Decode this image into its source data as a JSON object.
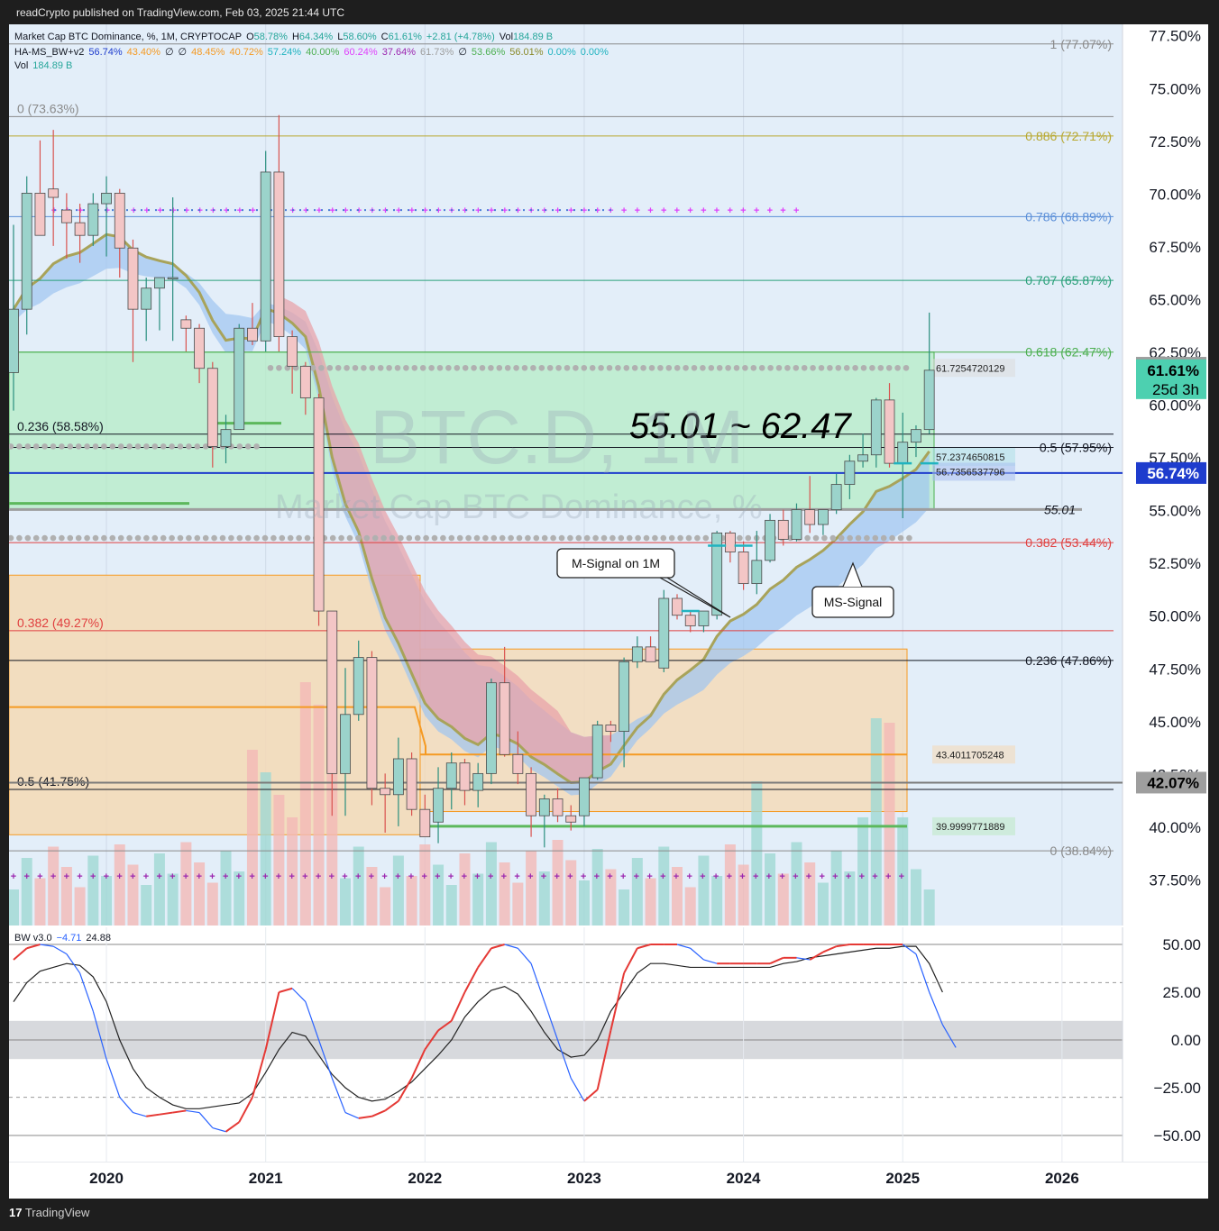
{
  "header": {
    "published": "readCrypto published on TradingView.com, Feb 03, 2025 21:44 UTC"
  },
  "legend": {
    "symbol_title": "Market Cap BTC Dominance, %, 1M, CRYPTOCAP",
    "ohlc": [
      {
        "t": "O",
        "v": "58.78%"
      },
      {
        "t": "H",
        "v": "64.34%"
      },
      {
        "t": "L",
        "v": "58.60%"
      },
      {
        "t": "C",
        "v": "61.61%"
      },
      {
        "t": "",
        "v": "+2.81 (+4.78%)"
      },
      {
        "t": "Vol",
        "v": "184.89 B"
      }
    ],
    "indicator_name": "HA-MS_BW+v2",
    "indicator_values": [
      {
        "v": "56.74%",
        "c": "#1e3ccd"
      },
      {
        "v": "43.40%",
        "c": "#f59a23"
      },
      {
        "v": "∅",
        "c": "#131722"
      },
      {
        "v": "∅",
        "c": "#131722"
      },
      {
        "v": "48.45%",
        "c": "#f59a23"
      },
      {
        "v": "40.72%",
        "c": "#f59a23"
      },
      {
        "v": "57.24%",
        "c": "#20b3c0"
      },
      {
        "v": "40.00%",
        "c": "#4caf50"
      },
      {
        "v": "60.24%",
        "c": "#e040fb"
      },
      {
        "v": "37.64%",
        "c": "#9c27b0"
      },
      {
        "v": "61.73%",
        "c": "#9e9e9e"
      },
      {
        "v": "∅",
        "c": "#131722"
      },
      {
        "v": "53.66%",
        "c": "#4caf50"
      },
      {
        "v": "56.01%",
        "c": "#8a8a2a"
      },
      {
        "v": "0.00%",
        "c": "#20b3c0"
      },
      {
        "v": "0.00%",
        "c": "#20b3c0"
      }
    ],
    "vol_label": "Vol",
    "vol_value": "184.89 B",
    "bw_name": "BW v3.0",
    "bw_values": [
      "−4.71",
      "24.88"
    ]
  },
  "watermark": {
    "big": "BTC.D, 1M",
    "small": "Market Cap BTC Dominance, %"
  },
  "annotations": {
    "range": "55.01 ~ 62.47",
    "m_signal": "M-Signal on 1M",
    "ms_signal": "MS-Signal"
  },
  "chart_data": {
    "type": "candlestick",
    "interval": "1M",
    "x_axis": {
      "ticks": [
        "2020",
        "2021",
        "2022",
        "2023",
        "2024",
        "2025",
        "2026"
      ]
    },
    "y_axis": {
      "unit": "%",
      "range": [
        35.3,
        78.0
      ],
      "ticks": [
        "77.50%",
        "75.00%",
        "72.50%",
        "70.00%",
        "67.50%",
        "65.00%",
        "62.50%",
        "60.00%",
        "57.50%",
        "55.00%",
        "52.50%",
        "50.00%",
        "47.50%",
        "45.00%",
        "42.50%",
        "40.00%",
        "37.50%"
      ]
    },
    "start": "2019-06",
    "candles": [
      {
        "o": 61.5,
        "h": 68.5,
        "l": 59.7,
        "c": 64.5
      },
      {
        "o": 64.5,
        "h": 70.8,
        "l": 63.3,
        "c": 70.0
      },
      {
        "o": 70.0,
        "h": 72.5,
        "l": 68.0,
        "c": 68.0
      },
      {
        "o": 70.2,
        "h": 73.0,
        "l": 67.5,
        "c": 69.8
      },
      {
        "o": 69.2,
        "h": 70.0,
        "l": 66.9,
        "c": 68.6
      },
      {
        "o": 68.6,
        "h": 69.5,
        "l": 66.7,
        "c": 68.0
      },
      {
        "o": 68.0,
        "h": 70.0,
        "l": 67.5,
        "c": 69.5
      },
      {
        "o": 69.5,
        "h": 70.8,
        "l": 67.0,
        "c": 70.0
      },
      {
        "o": 70.0,
        "h": 70.2,
        "l": 66.0,
        "c": 67.4
      },
      {
        "o": 67.4,
        "h": 67.8,
        "l": 62.0,
        "c": 64.5
      },
      {
        "o": 64.5,
        "h": 66.0,
        "l": 63.0,
        "c": 65.5
      },
      {
        "o": 65.5,
        "h": 66.0,
        "l": 63.5,
        "c": 66.0
      },
      {
        "o": 66.0,
        "h": 69.8,
        "l": 63.0,
        "c": 66.0
      },
      {
        "o": 64.0,
        "h": 64.2,
        "l": 62.5,
        "c": 63.6
      },
      {
        "o": 63.6,
        "h": 63.8,
        "l": 61.0,
        "c": 61.7
      },
      {
        "o": 61.7,
        "h": 62.0,
        "l": 57.0,
        "c": 58.0
      },
      {
        "o": 58.0,
        "h": 59.5,
        "l": 57.2,
        "c": 58.8
      },
      {
        "o": 58.8,
        "h": 63.8,
        "l": 58.8,
        "c": 63.6
      },
      {
        "o": 63.6,
        "h": 64.8,
        "l": 62.8,
        "c": 63.0
      },
      {
        "o": 63.0,
        "h": 72.0,
        "l": 62.5,
        "c": 71.0
      },
      {
        "o": 71.0,
        "h": 73.7,
        "l": 62.5,
        "c": 63.2
      },
      {
        "o": 63.2,
        "h": 63.5,
        "l": 60.5,
        "c": 61.8
      },
      {
        "o": 61.8,
        "h": 62.0,
        "l": 59.5,
        "c": 60.3
      },
      {
        "o": 60.3,
        "h": 60.5,
        "l": 49.5,
        "c": 50.2
      },
      {
        "o": 50.2,
        "h": 50.2,
        "l": 40.5,
        "c": 42.5
      },
      {
        "o": 42.5,
        "h": 47.5,
        "l": 40.5,
        "c": 45.3
      },
      {
        "o": 45.3,
        "h": 48.8,
        "l": 45.0,
        "c": 48.0
      },
      {
        "o": 48.0,
        "h": 48.3,
        "l": 41.0,
        "c": 41.8
      },
      {
        "o": 41.8,
        "h": 42.5,
        "l": 39.7,
        "c": 41.5
      },
      {
        "o": 41.5,
        "h": 44.2,
        "l": 40.0,
        "c": 43.2
      },
      {
        "o": 43.2,
        "h": 43.5,
        "l": 40.5,
        "c": 40.8
      },
      {
        "o": 40.8,
        "h": 41.5,
        "l": 39.8,
        "c": 39.5
      },
      {
        "o": 40.2,
        "h": 42.8,
        "l": 39.2,
        "c": 41.8
      },
      {
        "o": 41.8,
        "h": 43.5,
        "l": 40.8,
        "c": 43.0
      },
      {
        "o": 43.0,
        "h": 43.2,
        "l": 41.0,
        "c": 41.7
      },
      {
        "o": 41.7,
        "h": 43.0,
        "l": 40.9,
        "c": 42.5
      },
      {
        "o": 42.5,
        "h": 47.0,
        "l": 42.0,
        "c": 46.8
      },
      {
        "o": 46.8,
        "h": 48.5,
        "l": 43.3,
        "c": 43.4
      },
      {
        "o": 43.4,
        "h": 44.5,
        "l": 42.0,
        "c": 42.5
      },
      {
        "o": 42.5,
        "h": 42.8,
        "l": 39.5,
        "c": 40.5
      },
      {
        "o": 40.5,
        "h": 41.5,
        "l": 39.0,
        "c": 41.3
      },
      {
        "o": 41.3,
        "h": 41.8,
        "l": 40.2,
        "c": 40.5
      },
      {
        "o": 40.5,
        "h": 41.0,
        "l": 39.8,
        "c": 40.2
      },
      {
        "o": 40.5,
        "h": 42.0,
        "l": 40.0,
        "c": 42.3
      },
      {
        "o": 42.3,
        "h": 45.0,
        "l": 42.2,
        "c": 44.8
      },
      {
        "o": 44.8,
        "h": 45.0,
        "l": 44.0,
        "c": 44.5
      },
      {
        "o": 44.5,
        "h": 48.0,
        "l": 42.8,
        "c": 47.8
      },
      {
        "o": 47.8,
        "h": 49.0,
        "l": 47.5,
        "c": 48.5
      },
      {
        "o": 48.5,
        "h": 49.0,
        "l": 47.8,
        "c": 47.8
      },
      {
        "o": 47.5,
        "h": 51.2,
        "l": 47.3,
        "c": 50.8
      },
      {
        "o": 50.8,
        "h": 51.0,
        "l": 49.8,
        "c": 50.0
      },
      {
        "o": 50.0,
        "h": 50.2,
        "l": 49.2,
        "c": 49.5
      },
      {
        "o": 49.5,
        "h": 50.2,
        "l": 49.2,
        "c": 50.2
      },
      {
        "o": 50.0,
        "h": 54.0,
        "l": 49.8,
        "c": 53.9
      },
      {
        "o": 53.9,
        "h": 54.0,
        "l": 52.5,
        "c": 53.0
      },
      {
        "o": 53.0,
        "h": 53.5,
        "l": 51.2,
        "c": 51.5
      },
      {
        "o": 51.5,
        "h": 54.0,
        "l": 51.0,
        "c": 52.6
      },
      {
        "o": 52.6,
        "h": 54.8,
        "l": 52.5,
        "c": 54.5
      },
      {
        "o": 54.5,
        "h": 55.0,
        "l": 53.3,
        "c": 53.6
      },
      {
        "o": 53.6,
        "h": 55.3,
        "l": 53.5,
        "c": 55.0
      },
      {
        "o": 55.0,
        "h": 56.6,
        "l": 53.9,
        "c": 54.3
      },
      {
        "o": 54.3,
        "h": 55.0,
        "l": 53.8,
        "c": 55.0
      },
      {
        "o": 55.0,
        "h": 56.7,
        "l": 54.8,
        "c": 56.2
      },
      {
        "o": 56.2,
        "h": 57.6,
        "l": 55.5,
        "c": 57.3
      },
      {
        "o": 57.3,
        "h": 58.6,
        "l": 57.0,
        "c": 57.6
      },
      {
        "o": 57.6,
        "h": 60.3,
        "l": 57.0,
        "c": 60.2
      },
      {
        "o": 60.2,
        "h": 61.0,
        "l": 57.0,
        "c": 57.2
      },
      {
        "o": 57.2,
        "h": 59.6,
        "l": 54.6,
        "c": 58.2
      },
      {
        "o": 58.2,
        "h": 59.0,
        "l": 57.5,
        "c": 58.8
      },
      {
        "o": 58.8,
        "h": 64.34,
        "l": 58.6,
        "c": 61.61
      }
    ],
    "fibonacci": [
      {
        "level": "1",
        "label": "1 (77.07%)",
        "value": 77.07,
        "color": "#8a8a8a"
      },
      {
        "level": "0.886",
        "label": "0.886 (72.71%)",
        "value": 72.71,
        "color": "#b8a830"
      },
      {
        "level": "0.786",
        "label": "0.786 (68.89%)",
        "value": 68.89,
        "color": "#5b8fd8"
      },
      {
        "level": "0.707",
        "label": "0.707 (65.87%)",
        "value": 65.87,
        "color": "#2aa07a"
      },
      {
        "level": "0.618",
        "label": "0.618 (62.47%)",
        "value": 62.47,
        "color": "#4caf50"
      },
      {
        "level": "0.5",
        "label": "0.5 (57.95%)",
        "value": 57.95,
        "color": "#131722"
      },
      {
        "level": "0.382",
        "label": "0.382 (53.44%)",
        "value": 53.44,
        "color": "#e04040"
      },
      {
        "level": "0.236",
        "label": "0.236 (47.86%)",
        "value": 47.86,
        "color": "#131722"
      },
      {
        "level": "0",
        "label": "0 (38.84%)",
        "value": 38.84,
        "color": "#8a8a8a"
      }
    ],
    "fibonacci_left": [
      {
        "label": "0 (73.63%)",
        "value": 73.63,
        "color": "#8a8a8a"
      },
      {
        "label": "0.236 (58.58%)",
        "value": 58.58,
        "color": "#131722"
      },
      {
        "label": "0.382 (49.27%)",
        "value": 49.27,
        "color": "#e04040"
      },
      {
        "label": "0.5 (41.75%)",
        "value": 41.75,
        "color": "#131722"
      }
    ],
    "levels": [
      {
        "label": "55.01",
        "value": 55.01
      },
      {
        "label": "61.7254720129",
        "value": 61.7254720129
      },
      {
        "label": "57.2374650815",
        "value": 57.2374650815
      },
      {
        "label": "56.7356537796",
        "value": 56.7356537796
      },
      {
        "label": "43.4011705248",
        "value": 43.4011705248
      },
      {
        "label": "39.9999771889",
        "value": 39.9999771889
      }
    ],
    "price_badges": [
      {
        "label": "61.73%",
        "value": 61.73,
        "bg": "#9e9e9e",
        "fg": "#000000"
      },
      {
        "label": "61.61%",
        "sub": "25d 3h",
        "value": 61.61,
        "bg": "#4dd0b0",
        "fg": "#000000"
      },
      {
        "label": "56.74%",
        "value": 56.74,
        "bg": "#1e3ccd",
        "fg": "#ffffff"
      },
      {
        "label": "42.07%",
        "value": 42.07,
        "bg": "#9e9e9e",
        "fg": "#000000"
      }
    ],
    "bw_oscillator": {
      "y_ticks": [
        "50.00",
        "25.00",
        "0.00",
        "−25.00",
        "−50.00"
      ],
      "range": [
        -60,
        60
      ],
      "fast": [
        42,
        48,
        50,
        49,
        45,
        35,
        15,
        -10,
        -30,
        -38,
        -40,
        -39,
        -38,
        -37,
        -38,
        -46,
        -48,
        -43,
        -30,
        -5,
        25,
        27,
        20,
        0,
        -20,
        -38,
        -41,
        -40,
        -37,
        -32,
        -20,
        -5,
        5,
        10,
        25,
        38,
        48,
        50,
        48,
        40,
        20,
        0,
        -20,
        -32,
        -26,
        5,
        35,
        48,
        50,
        50,
        50,
        48,
        42,
        40,
        40,
        40,
        40,
        40,
        43,
        43,
        42,
        46,
        49,
        50,
        50,
        50,
        50,
        50,
        45,
        25,
        8,
        -4
      ],
      "slow": [
        20,
        30,
        36,
        38,
        40,
        39,
        33,
        20,
        0,
        -15,
        -25,
        -30,
        -34,
        -36,
        -36,
        -35,
        -34,
        -33,
        -28,
        -17,
        -5,
        4,
        2,
        -8,
        -18,
        -25,
        -30,
        -32,
        -31,
        -27,
        -22,
        -15,
        -8,
        0,
        12,
        20,
        26,
        28,
        24,
        15,
        4,
        -5,
        -9,
        -8,
        0,
        15,
        25,
        35,
        40,
        40,
        39,
        38,
        38,
        38,
        38,
        38,
        38,
        38,
        40,
        41,
        43,
        44,
        45,
        46,
        47,
        48,
        48,
        49,
        49,
        40,
        25
      ]
    }
  }
}
